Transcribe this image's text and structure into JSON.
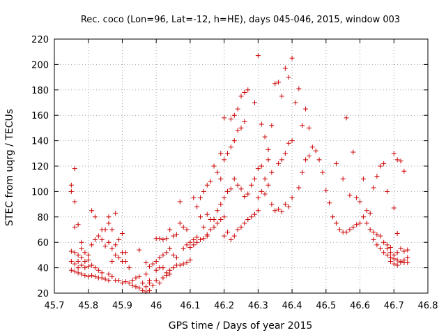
{
  "chart_data": {
    "type": "scatter",
    "title": "Rec. coco (Lon=96, Lat=-12, h=HE), days 045-046, 2015, window 003",
    "xlabel": "GPS time / Days of year 2015",
    "ylabel": "STEC from uqrg / TECUs",
    "xlim": [
      45.7,
      46.8
    ],
    "ylim": [
      20,
      220
    ],
    "xticks": [
      45.7,
      45.8,
      45.9,
      46,
      46.1,
      46.2,
      46.3,
      46.4,
      46.5,
      46.6,
      46.7,
      46.8
    ],
    "xtick_labels": [
      "45.7",
      "45.8",
      "45.9",
      "46",
      "46.1",
      "46.2",
      "46.3",
      "46.4",
      "46.5",
      "46.6",
      "46.7",
      "46.8"
    ],
    "yticks": [
      20,
      40,
      60,
      80,
      100,
      120,
      140,
      160,
      180,
      200,
      220
    ],
    "ytick_labels": [
      "20",
      "40",
      "60",
      "80",
      "100",
      "120",
      "140",
      "160",
      "180",
      "200",
      "220"
    ],
    "grid": true,
    "marker": "+",
    "color": "#cc0000",
    "series": [
      {
        "points": [
          [
            45.75,
            105
          ],
          [
            45.75,
            100
          ],
          [
            45.76,
            118
          ],
          [
            45.76,
            92
          ],
          [
            45.76,
            72
          ],
          [
            45.77,
            74
          ],
          [
            45.75,
            53
          ],
          [
            45.76,
            52
          ],
          [
            45.77,
            50
          ],
          [
            45.78,
            55
          ],
          [
            45.78,
            60
          ],
          [
            45.79,
            52
          ],
          [
            45.8,
            50
          ],
          [
            45.75,
            45
          ],
          [
            45.76,
            43
          ],
          [
            45.77,
            45
          ],
          [
            45.78,
            48
          ],
          [
            45.79,
            45
          ],
          [
            45.8,
            46
          ],
          [
            45.75,
            38
          ],
          [
            45.76,
            37
          ],
          [
            45.77,
            36
          ],
          [
            45.78,
            35
          ],
          [
            45.79,
            34
          ],
          [
            45.8,
            33
          ],
          [
            45.81,
            34
          ],
          [
            45.82,
            33
          ],
          [
            45.83,
            32
          ],
          [
            45.84,
            32
          ],
          [
            45.85,
            31
          ],
          [
            45.86,
            30
          ],
          [
            45.77,
            40
          ],
          [
            45.78,
            42
          ],
          [
            45.79,
            40
          ],
          [
            45.8,
            41
          ],
          [
            45.81,
            42
          ],
          [
            45.82,
            40
          ],
          [
            45.83,
            38
          ],
          [
            45.84,
            36
          ],
          [
            45.81,
            85
          ],
          [
            45.82,
            80
          ],
          [
            45.84,
            70
          ],
          [
            45.85,
            70
          ],
          [
            45.86,
            75
          ],
          [
            45.86,
            80
          ],
          [
            45.87,
            70
          ],
          [
            45.88,
            83
          ],
          [
            45.81,
            58
          ],
          [
            45.82,
            62
          ],
          [
            45.83,
            65
          ],
          [
            45.84,
            62
          ],
          [
            45.85,
            57
          ],
          [
            45.86,
            60
          ],
          [
            45.87,
            55
          ],
          [
            45.88,
            58
          ],
          [
            45.89,
            62
          ],
          [
            45.9,
            67
          ],
          [
            45.87,
            45
          ],
          [
            45.88,
            50
          ],
          [
            45.89,
            48
          ],
          [
            45.9,
            52
          ],
          [
            45.91,
            52
          ],
          [
            45.9,
            45
          ],
          [
            45.91,
            45
          ],
          [
            45.92,
            40
          ],
          [
            45.86,
            35
          ],
          [
            45.87,
            33
          ],
          [
            45.88,
            30
          ],
          [
            45.89,
            30
          ],
          [
            45.9,
            28
          ],
          [
            45.91,
            29
          ],
          [
            45.92,
            28
          ],
          [
            45.93,
            26
          ],
          [
            45.94,
            25
          ],
          [
            45.95,
            24
          ],
          [
            45.96,
            22
          ],
          [
            45.97,
            21
          ],
          [
            45.98,
            22
          ],
          [
            45.93,
            30
          ],
          [
            45.94,
            32
          ],
          [
            45.95,
            33
          ],
          [
            45.96,
            28
          ],
          [
            45.97,
            25
          ],
          [
            45.98,
            28
          ],
          [
            45.99,
            26
          ],
          [
            45.95,
            54
          ],
          [
            45.97,
            44
          ],
          [
            45.98,
            41
          ],
          [
            45.99,
            43
          ],
          [
            45.97,
            35
          ],
          [
            45.98,
            30
          ],
          [
            46.0,
            63
          ],
          [
            46.01,
            63
          ],
          [
            46.02,
            62
          ],
          [
            46.03,
            63
          ],
          [
            46.04,
            70
          ],
          [
            46.05,
            65
          ],
          [
            46.06,
            66
          ],
          [
            46.07,
            92
          ],
          [
            46.0,
            45
          ],
          [
            46.01,
            48
          ],
          [
            46.02,
            50
          ],
          [
            46.03,
            52
          ],
          [
            46.04,
            55
          ],
          [
            46.05,
            50
          ],
          [
            46.06,
            48
          ],
          [
            46.0,
            38
          ],
          [
            46.01,
            40
          ],
          [
            46.02,
            40
          ],
          [
            46.03,
            36
          ],
          [
            46.04,
            38
          ],
          [
            46.05,
            40
          ],
          [
            46.06,
            42
          ],
          [
            46.07,
            42
          ],
          [
            46.08,
            43
          ],
          [
            46.09,
            44
          ],
          [
            46.1,
            46
          ],
          [
            46.0,
            30
          ],
          [
            46.01,
            28
          ],
          [
            46.02,
            32
          ],
          [
            46.03,
            34
          ],
          [
            46.04,
            35
          ],
          [
            46.07,
            75
          ],
          [
            46.08,
            72
          ],
          [
            46.09,
            70
          ],
          [
            46.1,
            60
          ],
          [
            46.11,
            62
          ],
          [
            46.12,
            64
          ],
          [
            46.13,
            80
          ],
          [
            46.14,
            72
          ],
          [
            46.15,
            65
          ],
          [
            46.11,
            95
          ],
          [
            46.12,
            88
          ],
          [
            46.13,
            95
          ],
          [
            46.14,
            100
          ],
          [
            46.15,
            105
          ],
          [
            46.16,
            108
          ],
          [
            46.17,
            120
          ],
          [
            46.18,
            115
          ],
          [
            46.19,
            110
          ],
          [
            46.08,
            55
          ],
          [
            46.09,
            58
          ],
          [
            46.1,
            56
          ],
          [
            46.11,
            58
          ],
          [
            46.12,
            60
          ],
          [
            46.13,
            62
          ],
          [
            46.14,
            63
          ],
          [
            46.15,
            66
          ],
          [
            46.16,
            70
          ],
          [
            46.17,
            72
          ],
          [
            46.18,
            75
          ],
          [
            46.19,
            78
          ],
          [
            46.2,
            80
          ],
          [
            46.15,
            82
          ],
          [
            46.16,
            78
          ],
          [
            46.17,
            78
          ],
          [
            46.18,
            85
          ],
          [
            46.19,
            90
          ],
          [
            46.2,
            95
          ],
          [
            46.21,
            100
          ],
          [
            46.22,
            102
          ],
          [
            46.19,
            130
          ],
          [
            46.2,
            125
          ],
          [
            46.21,
            130
          ],
          [
            46.22,
            135
          ],
          [
            46.23,
            140
          ],
          [
            46.24,
            148
          ],
          [
            46.25,
            150
          ],
          [
            46.26,
            155
          ],
          [
            46.2,
            158
          ],
          [
            46.22,
            157
          ],
          [
            46.23,
            160
          ],
          [
            46.24,
            165
          ],
          [
            46.25,
            175
          ],
          [
            46.26,
            178
          ],
          [
            46.27,
            180
          ],
          [
            46.2,
            65
          ],
          [
            46.21,
            68
          ],
          [
            46.22,
            62
          ],
          [
            46.23,
            65
          ],
          [
            46.24,
            70
          ],
          [
            46.25,
            72
          ],
          [
            46.26,
            75
          ],
          [
            46.27,
            78
          ],
          [
            46.28,
            80
          ],
          [
            46.29,
            82
          ],
          [
            46.3,
            85
          ],
          [
            46.23,
            110
          ],
          [
            46.24,
            105
          ],
          [
            46.25,
            102
          ],
          [
            46.26,
            96
          ],
          [
            46.27,
            98
          ],
          [
            46.28,
            105
          ],
          [
            46.29,
            110
          ],
          [
            46.3,
            118
          ],
          [
            46.29,
            170
          ],
          [
            46.3,
            207
          ],
          [
            46.31,
            153
          ],
          [
            46.32,
            143
          ],
          [
            46.33,
            133
          ],
          [
            46.34,
            152
          ],
          [
            46.35,
            185
          ],
          [
            46.36,
            186
          ],
          [
            46.37,
            175
          ],
          [
            46.38,
            197
          ],
          [
            46.39,
            190
          ],
          [
            46.4,
            205
          ],
          [
            46.41,
            170
          ],
          [
            46.42,
            181
          ],
          [
            46.43,
            152
          ],
          [
            46.44,
            165
          ],
          [
            46.45,
            150
          ],
          [
            46.3,
            95
          ],
          [
            46.31,
            100
          ],
          [
            46.32,
            98
          ],
          [
            46.33,
            105
          ],
          [
            46.34,
            90
          ],
          [
            46.35,
            85
          ],
          [
            46.36,
            86
          ],
          [
            46.37,
            84
          ],
          [
            46.38,
            90
          ],
          [
            46.39,
            88
          ],
          [
            46.4,
            95
          ],
          [
            46.31,
            120
          ],
          [
            46.32,
            110
          ],
          [
            46.33,
            125
          ],
          [
            46.34,
            115
          ],
          [
            46.36,
            122
          ],
          [
            46.37,
            125
          ],
          [
            46.38,
            130
          ],
          [
            46.39,
            138
          ],
          [
            46.4,
            140
          ],
          [
            46.42,
            103
          ],
          [
            46.43,
            115
          ],
          [
            46.44,
            125
          ],
          [
            46.45,
            128
          ],
          [
            46.46,
            135
          ],
          [
            46.47,
            132
          ],
          [
            46.48,
            125
          ],
          [
            46.49,
            115
          ],
          [
            46.5,
            101
          ],
          [
            46.51,
            91
          ],
          [
            46.52,
            80
          ],
          [
            46.53,
            75
          ],
          [
            46.54,
            70
          ],
          [
            46.55,
            68
          ],
          [
            46.56,
            68
          ],
          [
            46.57,
            70
          ],
          [
            46.58,
            72
          ],
          [
            46.59,
            74
          ],
          [
            46.6,
            75
          ],
          [
            46.53,
            122
          ],
          [
            46.55,
            110
          ],
          [
            46.56,
            158
          ],
          [
            46.57,
            97
          ],
          [
            46.58,
            131
          ],
          [
            46.59,
            95
          ],
          [
            46.6,
            92
          ],
          [
            46.61,
            110
          ],
          [
            46.62,
            85
          ],
          [
            46.63,
            83
          ],
          [
            46.64,
            103
          ],
          [
            46.65,
            112
          ],
          [
            46.66,
            120
          ],
          [
            46.67,
            122
          ],
          [
            46.68,
            100
          ],
          [
            46.61,
            80
          ],
          [
            46.62,
            75
          ],
          [
            46.63,
            70
          ],
          [
            46.64,
            68
          ],
          [
            46.65,
            66
          ],
          [
            46.66,
            65
          ],
          [
            46.67,
            60
          ],
          [
            46.68,
            58
          ],
          [
            46.69,
            56
          ],
          [
            46.64,
            62
          ],
          [
            46.65,
            58
          ],
          [
            46.66,
            55
          ],
          [
            46.67,
            52
          ],
          [
            46.68,
            50
          ],
          [
            46.69,
            48
          ],
          [
            46.7,
            47
          ],
          [
            46.71,
            46
          ],
          [
            46.72,
            45
          ],
          [
            46.73,
            44
          ],
          [
            46.74,
            44
          ],
          [
            46.68,
            55
          ],
          [
            46.69,
            52
          ],
          [
            46.7,
            50
          ],
          [
            46.71,
            52
          ],
          [
            46.72,
            55
          ],
          [
            46.73,
            53
          ],
          [
            46.74,
            54
          ],
          [
            46.7,
            130
          ],
          [
            46.71,
            125
          ],
          [
            46.72,
            124
          ],
          [
            46.73,
            116
          ],
          [
            46.7,
            87
          ],
          [
            46.71,
            67
          ],
          [
            46.69,
            45
          ],
          [
            46.7,
            43
          ],
          [
            46.71,
            42
          ],
          [
            46.72,
            44
          ],
          [
            46.73,
            46
          ],
          [
            46.74,
            48
          ]
        ]
      }
    ]
  }
}
